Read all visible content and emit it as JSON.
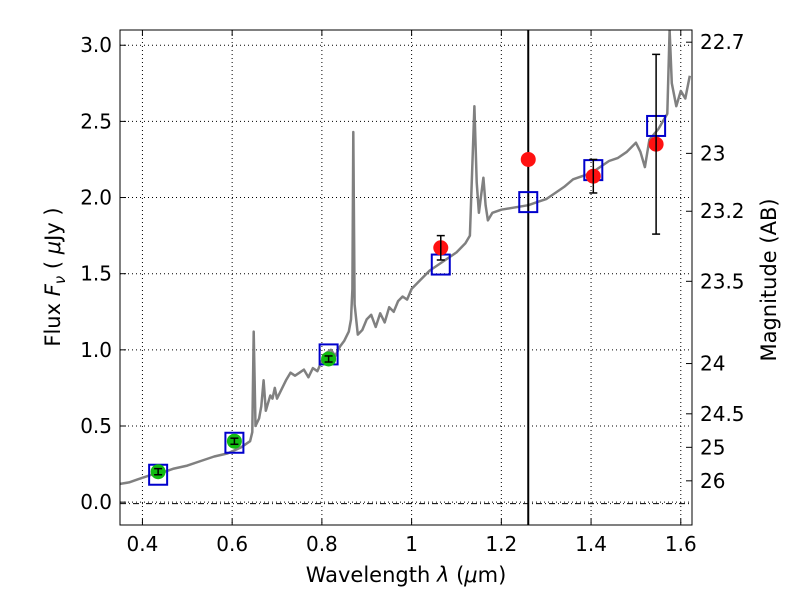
{
  "chart_data": {
    "type": "scatter",
    "xlabel_prefix": "Wavelength",
    "xlabel_symbol": "λ",
    "xlabel_unit_open": "(",
    "xlabel_unit_mu": "μ",
    "xlabel_unit_rest": "m)",
    "ylabel_prefix": "Flux",
    "ylabel_symbol": "F",
    "ylabel_sub": "ν",
    "ylabel_unit_open": "(",
    "ylabel_unit_mu": "μ",
    "ylabel_unit_rest": "Jy )",
    "y2label": "Magnitude (AB)",
    "xlim": [
      0.35,
      1.625
    ],
    "ylim": [
      -0.15,
      3.1
    ],
    "grid": true,
    "x_ticks": [
      0.4,
      0.6,
      0.8,
      1.0,
      1.2,
      1.4,
      1.6
    ],
    "x_tick_labels": [
      "0.4",
      "0.6",
      "0.8",
      "1",
      "1.2",
      "1.4",
      "1.6"
    ],
    "y_ticks": [
      0.0,
      0.5,
      1.0,
      1.5,
      2.0,
      2.5,
      3.0
    ],
    "y_tick_labels": [
      "0.0",
      "0.5",
      "1.0",
      "1.5",
      "2.0",
      "2.5",
      "3.0"
    ],
    "mag_ticks": [
      {
        "flux": 3.02,
        "label": "22.7"
      },
      {
        "flux": 2.29,
        "label": "23"
      },
      {
        "flux": 1.91,
        "label": "23.2"
      },
      {
        "flux": 1.45,
        "label": "23.5"
      },
      {
        "flux": 0.91,
        "label": "24"
      },
      {
        "flux": 0.58,
        "label": "24.5"
      },
      {
        "flux": 0.36,
        "label": "25"
      },
      {
        "flux": 0.14,
        "label": "26"
      }
    ],
    "mag_lower_line_flux": -0.01,
    "vline_x": 1.26,
    "series": [
      {
        "kind": "spectrum",
        "color": "#808080",
        "points": [
          [
            0.35,
            0.12
          ],
          [
            0.37,
            0.13
          ],
          [
            0.39,
            0.15
          ],
          [
            0.41,
            0.17
          ],
          [
            0.43,
            0.19
          ],
          [
            0.45,
            0.2
          ],
          [
            0.47,
            0.22
          ],
          [
            0.5,
            0.24
          ],
          [
            0.53,
            0.27
          ],
          [
            0.56,
            0.3
          ],
          [
            0.59,
            0.32
          ],
          [
            0.62,
            0.36
          ],
          [
            0.64,
            0.4
          ],
          [
            0.645,
            0.46
          ],
          [
            0.648,
            1.12
          ],
          [
            0.652,
            0.5
          ],
          [
            0.66,
            0.55
          ],
          [
            0.665,
            0.63
          ],
          [
            0.67,
            0.8
          ],
          [
            0.675,
            0.6
          ],
          [
            0.68,
            0.65
          ],
          [
            0.685,
            0.7
          ],
          [
            0.69,
            0.68
          ],
          [
            0.695,
            0.75
          ],
          [
            0.7,
            0.68
          ],
          [
            0.71,
            0.74
          ],
          [
            0.72,
            0.8
          ],
          [
            0.73,
            0.85
          ],
          [
            0.74,
            0.83
          ],
          [
            0.75,
            0.85
          ],
          [
            0.76,
            0.87
          ],
          [
            0.77,
            0.82
          ],
          [
            0.78,
            0.88
          ],
          [
            0.79,
            0.86
          ],
          [
            0.8,
            0.93
          ],
          [
            0.81,
            0.98
          ],
          [
            0.82,
            1.0
          ],
          [
            0.83,
            0.96
          ],
          [
            0.84,
            1.02
          ],
          [
            0.85,
            1.06
          ],
          [
            0.86,
            1.12
          ],
          [
            0.865,
            1.2
          ],
          [
            0.868,
            1.4
          ],
          [
            0.87,
            2.43
          ],
          [
            0.873,
            1.3
          ],
          [
            0.88,
            1.1
          ],
          [
            0.89,
            1.13
          ],
          [
            0.9,
            1.2
          ],
          [
            0.91,
            1.23
          ],
          [
            0.92,
            1.15
          ],
          [
            0.93,
            1.24
          ],
          [
            0.94,
            1.18
          ],
          [
            0.95,
            1.28
          ],
          [
            0.96,
            1.25
          ],
          [
            0.97,
            1.32
          ],
          [
            0.98,
            1.35
          ],
          [
            0.99,
            1.33
          ],
          [
            1.0,
            1.4
          ],
          [
            1.02,
            1.46
          ],
          [
            1.04,
            1.52
          ],
          [
            1.06,
            1.56
          ],
          [
            1.08,
            1.6
          ],
          [
            1.1,
            1.64
          ],
          [
            1.12,
            1.7
          ],
          [
            1.13,
            1.75
          ],
          [
            1.14,
            2.6
          ],
          [
            1.145,
            2.1
          ],
          [
            1.15,
            1.9
          ],
          [
            1.16,
            2.13
          ],
          [
            1.165,
            1.95
          ],
          [
            1.17,
            1.85
          ],
          [
            1.18,
            1.9
          ],
          [
            1.2,
            1.92
          ],
          [
            1.22,
            1.93
          ],
          [
            1.24,
            1.94
          ],
          [
            1.26,
            1.95
          ],
          [
            1.28,
            1.97
          ],
          [
            1.3,
            1.99
          ],
          [
            1.32,
            2.03
          ],
          [
            1.34,
            2.07
          ],
          [
            1.36,
            2.12
          ],
          [
            1.38,
            2.14
          ],
          [
            1.4,
            2.16
          ],
          [
            1.42,
            2.2
          ],
          [
            1.44,
            2.24
          ],
          [
            1.46,
            2.26
          ],
          [
            1.48,
            2.3
          ],
          [
            1.5,
            2.36
          ],
          [
            1.51,
            2.3
          ],
          [
            1.52,
            2.2
          ],
          [
            1.53,
            2.38
          ],
          [
            1.55,
            2.45
          ],
          [
            1.57,
            2.55
          ],
          [
            1.575,
            3.1
          ],
          [
            1.58,
            2.75
          ],
          [
            1.59,
            2.6
          ],
          [
            1.6,
            2.7
          ],
          [
            1.61,
            2.65
          ],
          [
            1.62,
            2.8
          ]
        ]
      },
      {
        "kind": "model_boxes",
        "color": "#0000cc",
        "points": [
          [
            0.435,
            0.18
          ],
          [
            0.605,
            0.39
          ],
          [
            0.815,
            0.97
          ],
          [
            1.065,
            1.56
          ],
          [
            1.26,
            1.97
          ],
          [
            1.405,
            2.18
          ],
          [
            1.545,
            2.47
          ]
        ]
      },
      {
        "kind": "photometry_green",
        "color": "#11bb11",
        "points": [
          {
            "x": 0.435,
            "y": 0.2,
            "err": 0.02
          },
          {
            "x": 0.605,
            "y": 0.4,
            "err": 0.02
          },
          {
            "x": 0.815,
            "y": 0.94,
            "err": 0.02
          }
        ]
      },
      {
        "kind": "photometry_red",
        "color": "#ff1111",
        "points": [
          {
            "x": 1.065,
            "y": 1.67,
            "err": 0.08
          },
          {
            "x": 1.26,
            "y": 2.25,
            "err": 0
          },
          {
            "x": 1.405,
            "y": 2.14,
            "err": 0.11
          },
          {
            "x": 1.545,
            "y": 2.35,
            "err": 0.59
          }
        ]
      }
    ]
  }
}
